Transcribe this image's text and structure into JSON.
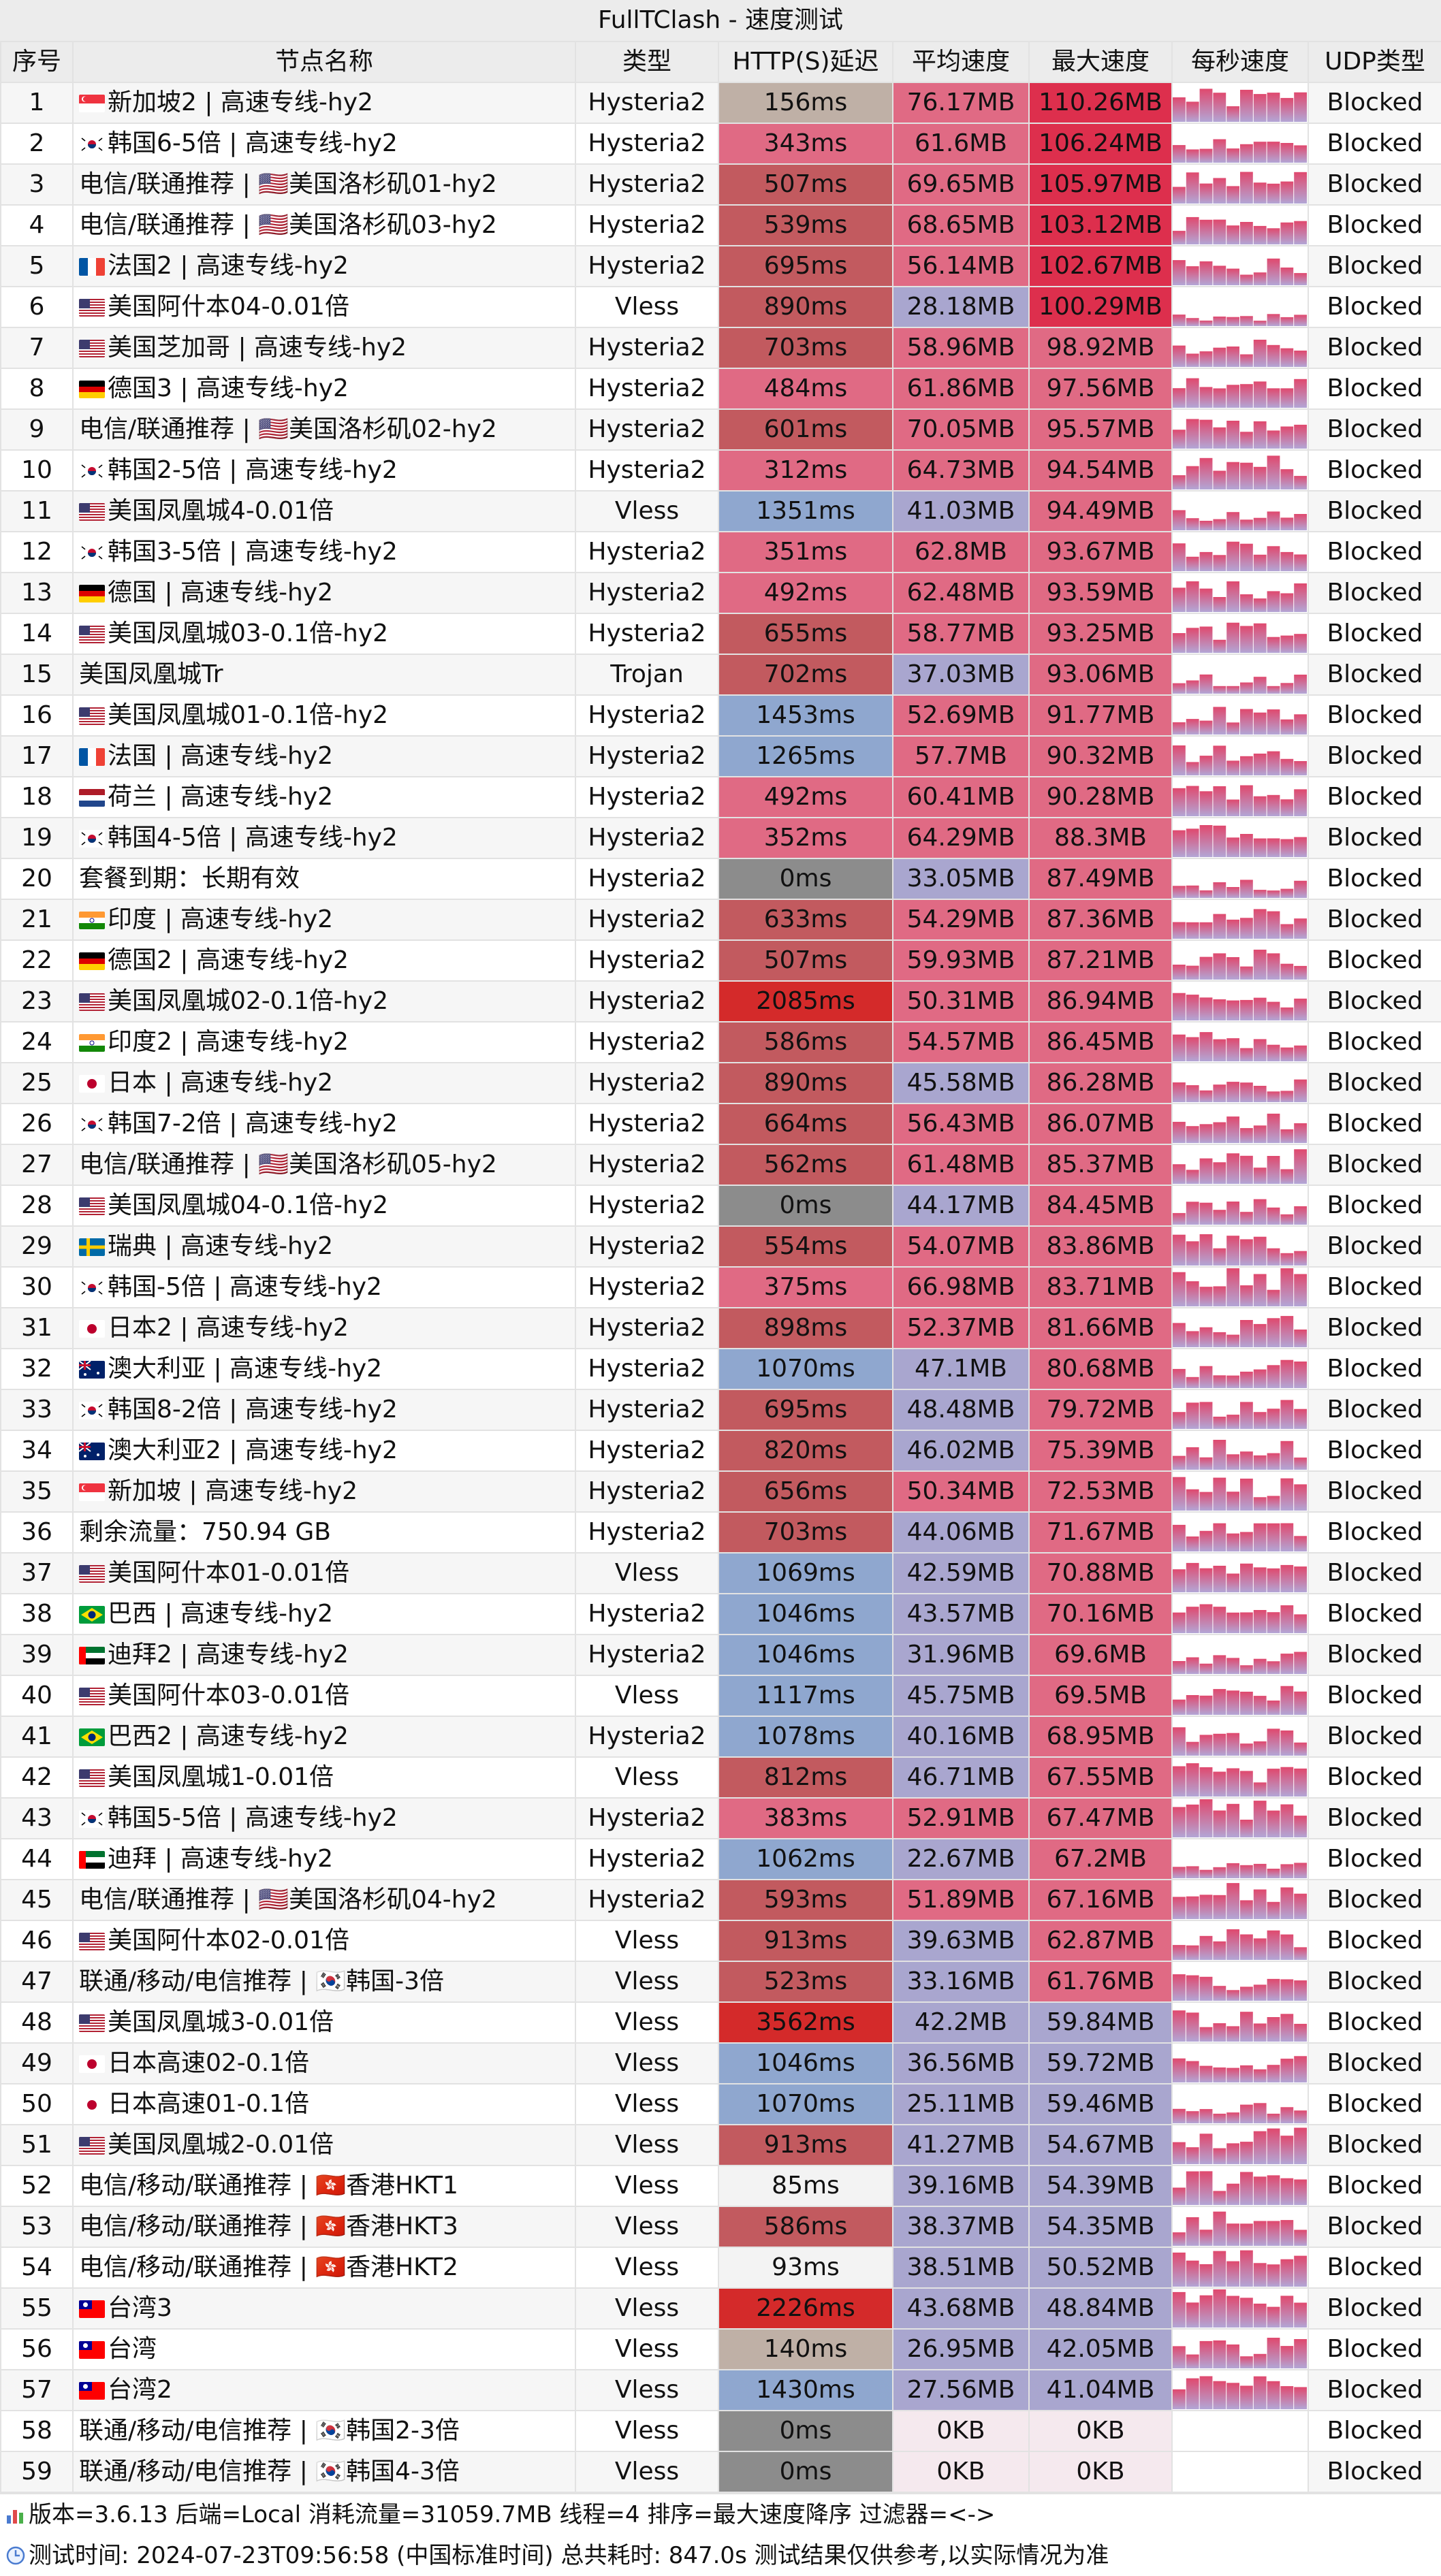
{
  "title": "FullTClash - 速度测试",
  "columns": [
    "序号",
    "节点名称",
    "类型",
    "HTTP(S)延迟",
    "平均速度",
    "最大速度",
    "每秒速度",
    "UDP类型"
  ],
  "colors": {
    "latency_good": "#e06a84",
    "latency_mid": "#c25a5f",
    "latency_bad": "#d42a2a",
    "latency_slow": "#8fa7cf",
    "latency_fast_light": "#f3f3f3",
    "latency_beige": "#bfb0a6",
    "latency_zero": "#8c8c8c",
    "speed_avg_high": "#e06a84",
    "speed_avg_low": "#a9a6cf",
    "speed_max_top": "#dd2f4d",
    "speed_max_mid": "#e06a84",
    "speed_max_low": "#a9a6cf",
    "speed_zero": "#f5e9ee"
  },
  "rows": [
    {
      "idx": "1",
      "flag": "sg",
      "name": "新加坡2 | 高速专线-hy2",
      "type": "Hysteria2",
      "latency": "156ms",
      "avg": "76.17MB",
      "max": "110.26MB",
      "udp": "Blocked"
    },
    {
      "idx": "2",
      "flag": "kr",
      "name": "韩国6-5倍 | 高速专线-hy2",
      "type": "Hysteria2",
      "latency": "343ms",
      "avg": "61.6MB",
      "max": "106.24MB",
      "udp": "Blocked"
    },
    {
      "idx": "3",
      "flag": "",
      "name": "电信/联通推荐 | 🇺🇸美国洛杉矶01-hy2",
      "type": "Hysteria2",
      "latency": "507ms",
      "avg": "69.65MB",
      "max": "105.97MB",
      "udp": "Blocked"
    },
    {
      "idx": "4",
      "flag": "",
      "name": "电信/联通推荐 | 🇺🇸美国洛杉矶03-hy2",
      "type": "Hysteria2",
      "latency": "539ms",
      "avg": "68.65MB",
      "max": "103.12MB",
      "udp": "Blocked"
    },
    {
      "idx": "5",
      "flag": "fr",
      "name": "法国2 | 高速专线-hy2",
      "type": "Hysteria2",
      "latency": "695ms",
      "avg": "56.14MB",
      "max": "102.67MB",
      "udp": "Blocked"
    },
    {
      "idx": "6",
      "flag": "us",
      "name": "美国阿什本04-0.01倍",
      "type": "Vless",
      "latency": "890ms",
      "avg": "28.18MB",
      "max": "100.29MB",
      "udp": "Blocked"
    },
    {
      "idx": "7",
      "flag": "us",
      "name": "美国芝加哥 | 高速专线-hy2",
      "type": "Hysteria2",
      "latency": "703ms",
      "avg": "58.96MB",
      "max": "98.92MB",
      "udp": "Blocked"
    },
    {
      "idx": "8",
      "flag": "de",
      "name": "德国3 | 高速专线-hy2",
      "type": "Hysteria2",
      "latency": "484ms",
      "avg": "61.86MB",
      "max": "97.56MB",
      "udp": "Blocked"
    },
    {
      "idx": "9",
      "flag": "",
      "name": "电信/联通推荐 | 🇺🇸美国洛杉矶02-hy2",
      "type": "Hysteria2",
      "latency": "601ms",
      "avg": "70.05MB",
      "max": "95.57MB",
      "udp": "Blocked"
    },
    {
      "idx": "10",
      "flag": "kr",
      "name": "韩国2-5倍 | 高速专线-hy2",
      "type": "Hysteria2",
      "latency": "312ms",
      "avg": "64.73MB",
      "max": "94.54MB",
      "udp": "Blocked"
    },
    {
      "idx": "11",
      "flag": "us",
      "name": "美国凤凰城4-0.01倍",
      "type": "Vless",
      "latency": "1351ms",
      "avg": "41.03MB",
      "max": "94.49MB",
      "udp": "Blocked"
    },
    {
      "idx": "12",
      "flag": "kr",
      "name": "韩国3-5倍 | 高速专线-hy2",
      "type": "Hysteria2",
      "latency": "351ms",
      "avg": "62.8MB",
      "max": "93.67MB",
      "udp": "Blocked"
    },
    {
      "idx": "13",
      "flag": "de",
      "name": "德国 | 高速专线-hy2",
      "type": "Hysteria2",
      "latency": "492ms",
      "avg": "62.48MB",
      "max": "93.59MB",
      "udp": "Blocked"
    },
    {
      "idx": "14",
      "flag": "us",
      "name": "美国凤凰城03-0.1倍-hy2",
      "type": "Hysteria2",
      "latency": "655ms",
      "avg": "58.77MB",
      "max": "93.25MB",
      "udp": "Blocked"
    },
    {
      "idx": "15",
      "flag": "",
      "name": "美国凤凰城Tr",
      "type": "Trojan",
      "latency": "702ms",
      "avg": "37.03MB",
      "max": "93.06MB",
      "udp": "Blocked"
    },
    {
      "idx": "16",
      "flag": "us",
      "name": "美国凤凰城01-0.1倍-hy2",
      "type": "Hysteria2",
      "latency": "1453ms",
      "avg": "52.69MB",
      "max": "91.77MB",
      "udp": "Blocked"
    },
    {
      "idx": "17",
      "flag": "fr",
      "name": "法国 | 高速专线-hy2",
      "type": "Hysteria2",
      "latency": "1265ms",
      "avg": "57.7MB",
      "max": "90.32MB",
      "udp": "Blocked"
    },
    {
      "idx": "18",
      "flag": "nl",
      "name": "荷兰 | 高速专线-hy2",
      "type": "Hysteria2",
      "latency": "492ms",
      "avg": "60.41MB",
      "max": "90.28MB",
      "udp": "Blocked"
    },
    {
      "idx": "19",
      "flag": "kr",
      "name": "韩国4-5倍 | 高速专线-hy2",
      "type": "Hysteria2",
      "latency": "352ms",
      "avg": "64.29MB",
      "max": "88.3MB",
      "udp": "Blocked"
    },
    {
      "idx": "20",
      "flag": "",
      "name": "套餐到期：长期有效",
      "type": "Hysteria2",
      "latency": "0ms",
      "avg": "33.05MB",
      "max": "87.49MB",
      "udp": "Blocked"
    },
    {
      "idx": "21",
      "flag": "in",
      "name": "印度 | 高速专线-hy2",
      "type": "Hysteria2",
      "latency": "633ms",
      "avg": "54.29MB",
      "max": "87.36MB",
      "udp": "Blocked"
    },
    {
      "idx": "22",
      "flag": "de",
      "name": "德国2 | 高速专线-hy2",
      "type": "Hysteria2",
      "latency": "507ms",
      "avg": "59.93MB",
      "max": "87.21MB",
      "udp": "Blocked"
    },
    {
      "idx": "23",
      "flag": "us",
      "name": "美国凤凰城02-0.1倍-hy2",
      "type": "Hysteria2",
      "latency": "2085ms",
      "avg": "50.31MB",
      "max": "86.94MB",
      "udp": "Blocked"
    },
    {
      "idx": "24",
      "flag": "in",
      "name": "印度2 | 高速专线-hy2",
      "type": "Hysteria2",
      "latency": "586ms",
      "avg": "54.57MB",
      "max": "86.45MB",
      "udp": "Blocked"
    },
    {
      "idx": "25",
      "flag": "jp",
      "name": "日本 | 高速专线-hy2",
      "type": "Hysteria2",
      "latency": "890ms",
      "avg": "45.58MB",
      "max": "86.28MB",
      "udp": "Blocked"
    },
    {
      "idx": "26",
      "flag": "kr",
      "name": "韩国7-2倍 | 高速专线-hy2",
      "type": "Hysteria2",
      "latency": "664ms",
      "avg": "56.43MB",
      "max": "86.07MB",
      "udp": "Blocked"
    },
    {
      "idx": "27",
      "flag": "",
      "name": "电信/联通推荐 | 🇺🇸美国洛杉矶05-hy2",
      "type": "Hysteria2",
      "latency": "562ms",
      "avg": "61.48MB",
      "max": "85.37MB",
      "udp": "Blocked"
    },
    {
      "idx": "28",
      "flag": "us",
      "name": "美国凤凰城04-0.1倍-hy2",
      "type": "Hysteria2",
      "latency": "0ms",
      "avg": "44.17MB",
      "max": "84.45MB",
      "udp": "Blocked"
    },
    {
      "idx": "29",
      "flag": "se",
      "name": "瑞典 | 高速专线-hy2",
      "type": "Hysteria2",
      "latency": "554ms",
      "avg": "54.07MB",
      "max": "83.86MB",
      "udp": "Blocked"
    },
    {
      "idx": "30",
      "flag": "kr",
      "name": "韩国-5倍 | 高速专线-hy2",
      "type": "Hysteria2",
      "latency": "375ms",
      "avg": "66.98MB",
      "max": "83.71MB",
      "udp": "Blocked"
    },
    {
      "idx": "31",
      "flag": "jp",
      "name": "日本2 | 高速专线-hy2",
      "type": "Hysteria2",
      "latency": "898ms",
      "avg": "52.37MB",
      "max": "81.66MB",
      "udp": "Blocked"
    },
    {
      "idx": "32",
      "flag": "au",
      "name": "澳大利亚 | 高速专线-hy2",
      "type": "Hysteria2",
      "latency": "1070ms",
      "avg": "47.1MB",
      "max": "80.68MB",
      "udp": "Blocked"
    },
    {
      "idx": "33",
      "flag": "kr",
      "name": "韩国8-2倍 | 高速专线-hy2",
      "type": "Hysteria2",
      "latency": "695ms",
      "avg": "48.48MB",
      "max": "79.72MB",
      "udp": "Blocked"
    },
    {
      "idx": "34",
      "flag": "au",
      "name": "澳大利亚2 | 高速专线-hy2",
      "type": "Hysteria2",
      "latency": "820ms",
      "avg": "46.02MB",
      "max": "75.39MB",
      "udp": "Blocked"
    },
    {
      "idx": "35",
      "flag": "sg",
      "name": "新加坡 | 高速专线-hy2",
      "type": "Hysteria2",
      "latency": "656ms",
      "avg": "50.34MB",
      "max": "72.53MB",
      "udp": "Blocked"
    },
    {
      "idx": "36",
      "flag": "",
      "name": "剩余流量：750.94 GB",
      "type": "Hysteria2",
      "latency": "703ms",
      "avg": "44.06MB",
      "max": "71.67MB",
      "udp": "Blocked"
    },
    {
      "idx": "37",
      "flag": "us",
      "name": "美国阿什本01-0.01倍",
      "type": "Vless",
      "latency": "1069ms",
      "avg": "42.59MB",
      "max": "70.88MB",
      "udp": "Blocked"
    },
    {
      "idx": "38",
      "flag": "br",
      "name": "巴西 | 高速专线-hy2",
      "type": "Hysteria2",
      "latency": "1046ms",
      "avg": "43.57MB",
      "max": "70.16MB",
      "udp": "Blocked"
    },
    {
      "idx": "39",
      "flag": "ae",
      "name": "迪拜2 | 高速专线-hy2",
      "type": "Hysteria2",
      "latency": "1046ms",
      "avg": "31.96MB",
      "max": "69.6MB",
      "udp": "Blocked"
    },
    {
      "idx": "40",
      "flag": "us",
      "name": "美国阿什本03-0.01倍",
      "type": "Vless",
      "latency": "1117ms",
      "avg": "45.75MB",
      "max": "69.5MB",
      "udp": "Blocked"
    },
    {
      "idx": "41",
      "flag": "br",
      "name": "巴西2 | 高速专线-hy2",
      "type": "Hysteria2",
      "latency": "1078ms",
      "avg": "40.16MB",
      "max": "68.95MB",
      "udp": "Blocked"
    },
    {
      "idx": "42",
      "flag": "us",
      "name": "美国凤凰城1-0.01倍",
      "type": "Vless",
      "latency": "812ms",
      "avg": "46.71MB",
      "max": "67.55MB",
      "udp": "Blocked"
    },
    {
      "idx": "43",
      "flag": "kr",
      "name": "韩国5-5倍 | 高速专线-hy2",
      "type": "Hysteria2",
      "latency": "383ms",
      "avg": "52.91MB",
      "max": "67.47MB",
      "udp": "Blocked"
    },
    {
      "idx": "44",
      "flag": "ae",
      "name": "迪拜 | 高速专线-hy2",
      "type": "Hysteria2",
      "latency": "1062ms",
      "avg": "22.67MB",
      "max": "67.2MB",
      "udp": "Blocked"
    },
    {
      "idx": "45",
      "flag": "",
      "name": "电信/联通推荐 | 🇺🇸美国洛杉矶04-hy2",
      "type": "Hysteria2",
      "latency": "593ms",
      "avg": "51.89MB",
      "max": "67.16MB",
      "udp": "Blocked"
    },
    {
      "idx": "46",
      "flag": "us",
      "name": "美国阿什本02-0.01倍",
      "type": "Vless",
      "latency": "913ms",
      "avg": "39.63MB",
      "max": "62.87MB",
      "udp": "Blocked"
    },
    {
      "idx": "47",
      "flag": "",
      "name": "联通/移动/电信推荐 | 🇰🇷韩国-3倍",
      "type": "Vless",
      "latency": "523ms",
      "avg": "33.16MB",
      "max": "61.76MB",
      "udp": "Blocked"
    },
    {
      "idx": "48",
      "flag": "us",
      "name": "美国凤凰城3-0.01倍",
      "type": "Vless",
      "latency": "3562ms",
      "avg": "42.2MB",
      "max": "59.84MB",
      "udp": "Blocked"
    },
    {
      "idx": "49",
      "flag": "jp",
      "name": "日本高速02-0.1倍",
      "type": "Vless",
      "latency": "1046ms",
      "avg": "36.56MB",
      "max": "59.72MB",
      "udp": "Blocked"
    },
    {
      "idx": "50",
      "flag": "jp",
      "name": "日本高速01-0.1倍",
      "type": "Vless",
      "latency": "1070ms",
      "avg": "25.11MB",
      "max": "59.46MB",
      "udp": "Blocked"
    },
    {
      "idx": "51",
      "flag": "us",
      "name": "美国凤凰城2-0.01倍",
      "type": "Vless",
      "latency": "913ms",
      "avg": "41.27MB",
      "max": "54.67MB",
      "udp": "Blocked"
    },
    {
      "idx": "52",
      "flag": "",
      "name": "电信/移动/联通推荐 | 🇭🇰香港HKT1",
      "type": "Vless",
      "latency": "85ms",
      "avg": "39.16MB",
      "max": "54.39MB",
      "udp": "Blocked"
    },
    {
      "idx": "53",
      "flag": "",
      "name": "电信/移动/联通推荐 | 🇭🇰香港HKT3",
      "type": "Vless",
      "latency": "586ms",
      "avg": "38.37MB",
      "max": "54.35MB",
      "udp": "Blocked"
    },
    {
      "idx": "54",
      "flag": "",
      "name": "电信/移动/联通推荐 | 🇭🇰香港HKT2",
      "type": "Vless",
      "latency": "93ms",
      "avg": "38.51MB",
      "max": "50.52MB",
      "udp": "Blocked"
    },
    {
      "idx": "55",
      "flag": "tw",
      "name": "台湾3",
      "type": "Vless",
      "latency": "2226ms",
      "avg": "43.68MB",
      "max": "48.84MB",
      "udp": "Blocked"
    },
    {
      "idx": "56",
      "flag": "tw",
      "name": "台湾",
      "type": "Vless",
      "latency": "140ms",
      "avg": "26.95MB",
      "max": "42.05MB",
      "udp": "Blocked"
    },
    {
      "idx": "57",
      "flag": "tw",
      "name": "台湾2",
      "type": "Vless",
      "latency": "1430ms",
      "avg": "27.56MB",
      "max": "41.04MB",
      "udp": "Blocked"
    },
    {
      "idx": "58",
      "flag": "",
      "name": "联通/移动/电信推荐 | 🇰🇷韩国2-3倍",
      "type": "Vless",
      "latency": "0ms",
      "avg": "0KB",
      "max": "0KB",
      "udp": "Blocked"
    },
    {
      "idx": "59",
      "flag": "",
      "name": "联通/移动/电信推荐 | 🇰🇷韩国4-3倍",
      "type": "Vless",
      "latency": "0ms",
      "avg": "0KB",
      "max": "0KB",
      "udp": "Blocked"
    }
  ],
  "footer": {
    "line1_icon": "bar-chart-icon",
    "line1": "版本=3.6.13  后端=Local  消耗流量=31059.7MB  线程=4  排序=最大速度降序  过滤器=<->",
    "line2_icon": "clock-icon",
    "line2": "测试时间: 2024-07-23T09:56:58 (中国标准时间) 总共耗时: 847.0s 测试结果仅供参考,以实际情况为准"
  }
}
